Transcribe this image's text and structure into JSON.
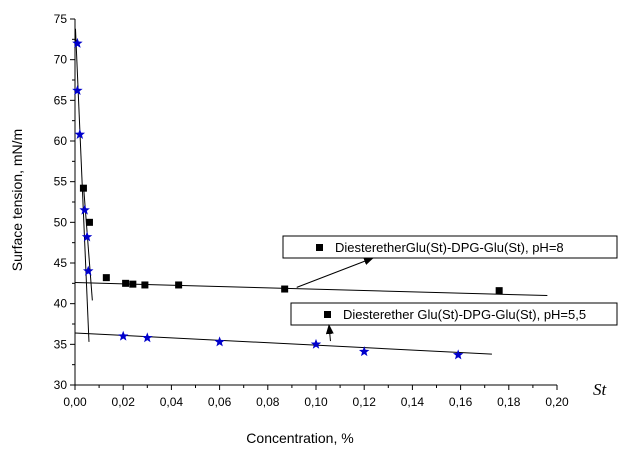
{
  "chart_data": {
    "type": "scatter",
    "title": "",
    "xlabel": "Concentration, %",
    "ylabel": "Surface tension, mN/m",
    "xlim": [
      0,
      0.2
    ],
    "ylim": [
      30,
      75
    ],
    "grid": false,
    "x_ticks": [
      "0,00",
      "0,02",
      "0,04",
      "0,06",
      "0,08",
      "0,10",
      "0,12",
      "0,14",
      "0,16",
      "0,18",
      "0,20"
    ],
    "y_ticks": [
      "30",
      "35",
      "40",
      "45",
      "50",
      "55",
      "60",
      "65",
      "70",
      "75"
    ],
    "series": [
      {
        "name": "DiesteretherGlu(St)-DPG-Glu(St), pH=8",
        "marker": "square",
        "color": "#000000",
        "points": [
          [
            0.0035,
            54.2
          ],
          [
            0.006,
            50.0
          ],
          [
            0.013,
            43.2
          ],
          [
            0.021,
            42.5
          ],
          [
            0.024,
            42.4
          ],
          [
            0.029,
            42.3
          ],
          [
            0.043,
            42.3
          ],
          [
            0.087,
            41.8
          ],
          [
            0.176,
            41.6
          ]
        ],
        "fit_lines": [
          {
            "from": [
              0.0,
              42.6
            ],
            "to": [
              0.196,
              41.0
            ]
          },
          {
            "from": [
              0.0035,
              54.6
            ],
            "to": [
              0.0072,
              40.4
            ]
          }
        ]
      },
      {
        "name": "Diesterether Glu(St)-DPG-Glu(St), pH=5,5",
        "marker": "star",
        "color": "#0000cc",
        "points": [
          [
            0.001,
            72.0
          ],
          [
            0.001,
            66.2
          ],
          [
            0.002,
            60.8
          ],
          [
            0.004,
            51.5
          ],
          [
            0.005,
            48.2
          ],
          [
            0.0055,
            44.0
          ],
          [
            0.02,
            36.0
          ],
          [
            0.03,
            35.8
          ],
          [
            0.06,
            35.3
          ],
          [
            0.1,
            35.0
          ],
          [
            0.12,
            34.1
          ],
          [
            0.159,
            33.7
          ]
        ],
        "fit_lines": [
          {
            "from": [
              0.0,
              36.4
            ],
            "to": [
              0.173,
              33.8
            ]
          },
          {
            "from": [
              0.0002,
              73.8
            ],
            "to": [
              0.0058,
              35.3
            ]
          }
        ]
      }
    ],
    "legend_placement": "right, beside the series, with arrows to the fitted lines",
    "stray_label": "St"
  }
}
